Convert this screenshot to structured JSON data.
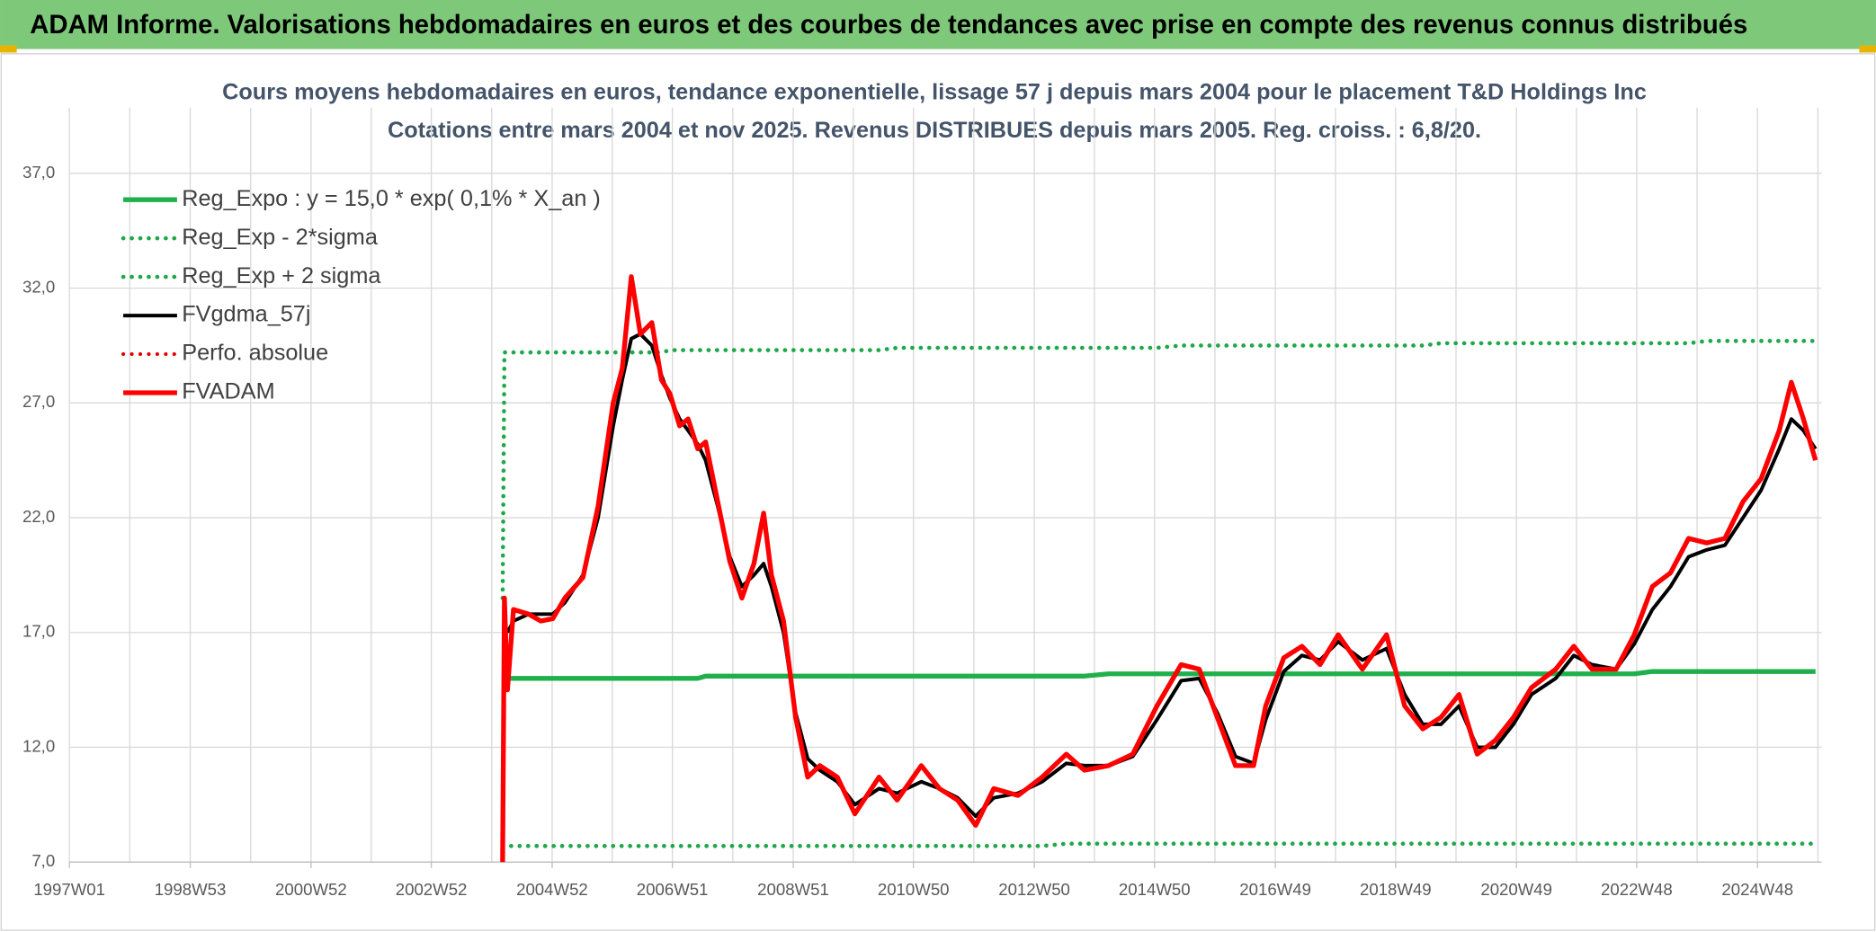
{
  "chart_data": {
    "type": "line",
    "header": "ADAM Informe. Valorisations hebdomadaires en euros et des courbes de tendances avec prise en compte des revenus connus distribués",
    "title": "Cours moyens hebdomadaires en euros, tendance exponentielle, lissage 57 j depuis mars 2004 pour le placement T&D Holdings Inc",
    "subtitle": "Cotations entre mars 2004 et nov 2025. Revenus DISTRIBUES depuis mars 2005. Reg. croiss. : 6,8/20.",
    "xlim": [
      1997.0,
      2026.0
    ],
    "xticks": [
      {
        "value": 1997.0,
        "label": "1997W01"
      },
      {
        "value": 1999.0,
        "label": "1998W53"
      },
      {
        "value": 2001.0,
        "label": "2000W52"
      },
      {
        "value": 2002.99,
        "label": "2002W52"
      },
      {
        "value": 2004.99,
        "label": "2004W52"
      },
      {
        "value": 2006.98,
        "label": "2006W51"
      },
      {
        "value": 2008.98,
        "label": "2008W51"
      },
      {
        "value": 2010.97,
        "label": "2010W50"
      },
      {
        "value": 2012.97,
        "label": "2012W50"
      },
      {
        "value": 2014.96,
        "label": "2014W50"
      },
      {
        "value": 2016.96,
        "label": "2016W49"
      },
      {
        "value": 2018.95,
        "label": "2018W49"
      },
      {
        "value": 2020.95,
        "label": "2020W49"
      },
      {
        "value": 2022.94,
        "label": "2022W48"
      },
      {
        "value": 2024.94,
        "label": "2024W48"
      }
    ],
    "ylim": [
      7.0,
      37.0
    ],
    "yticks": [
      {
        "value": 7,
        "label": "7,0"
      },
      {
        "value": 12,
        "label": "12,0"
      },
      {
        "value": 17,
        "label": "17,0"
      },
      {
        "value": 22,
        "label": "22,0"
      },
      {
        "value": 27,
        "label": "27,0"
      },
      {
        "value": 32,
        "label": "32,0"
      },
      {
        "value": 37,
        "label": "37,0"
      }
    ],
    "grid": true,
    "legend": "upper left",
    "x": [
      2004.17,
      2004.2,
      2004.25,
      2004.35,
      2004.6,
      2004.8,
      2005.0,
      2005.2,
      2005.5,
      2005.75,
      2006.0,
      2006.15,
      2006.3,
      2006.45,
      2006.64,
      2006.8,
      2006.94,
      2007.1,
      2007.24,
      2007.4,
      2007.53,
      2007.73,
      2007.93,
      2008.13,
      2008.33,
      2008.49,
      2008.62,
      2008.82,
      2009.02,
      2009.22,
      2009.42,
      2009.71,
      2010.0,
      2010.4,
      2010.7,
      2011.1,
      2011.4,
      2011.7,
      2012.0,
      2012.3,
      2012.7,
      2013.1,
      2013.5,
      2013.8,
      2014.2,
      2014.6,
      2015.0,
      2015.4,
      2015.7,
      2016.0,
      2016.3,
      2016.6,
      2016.8,
      2017.1,
      2017.4,
      2017.7,
      2018.0,
      2018.4,
      2018.8,
      2019.1,
      2019.4,
      2019.7,
      2020.0,
      2020.3,
      2020.6,
      2020.9,
      2021.2,
      2021.6,
      2021.9,
      2022.2,
      2022.6,
      2022.9,
      2023.2,
      2023.5,
      2023.8,
      2024.1,
      2024.4,
      2024.7,
      2025.0,
      2025.3,
      2025.5,
      2025.7,
      2025.9
    ],
    "series": [
      {
        "name": "Reg_Expo : y = 15,0 * exp( 0,1% *  X_an )",
        "color": "#1fb04b",
        "style": "solid",
        "width": 4,
        "values": [
          15.0,
          15.0,
          15.0,
          15.0,
          15.0,
          15.0,
          15.0,
          15.0,
          15.0,
          15.0,
          15.0,
          15.0,
          15.0,
          15.0,
          15.0,
          15.0,
          15.0,
          15.0,
          15.0,
          15.0,
          15.1,
          15.1,
          15.1,
          15.1,
          15.1,
          15.1,
          15.1,
          15.1,
          15.1,
          15.1,
          15.1,
          15.1,
          15.1,
          15.1,
          15.1,
          15.1,
          15.1,
          15.1,
          15.1,
          15.1,
          15.1,
          15.1,
          15.1,
          15.1,
          15.2,
          15.2,
          15.2,
          15.2,
          15.2,
          15.2,
          15.2,
          15.2,
          15.2,
          15.2,
          15.2,
          15.2,
          15.2,
          15.2,
          15.2,
          15.2,
          15.2,
          15.2,
          15.2,
          15.2,
          15.2,
          15.2,
          15.2,
          15.2,
          15.2,
          15.2,
          15.2,
          15.2,
          15.3,
          15.3,
          15.3,
          15.3,
          15.3,
          15.3,
          15.3,
          15.3,
          15.3,
          15.3,
          15.3
        ]
      },
      {
        "name": "Reg_Exp - 2*sigma",
        "color": "#1fa84a",
        "style": "dotted",
        "width": 3.5,
        "values": [
          7.7,
          7.7,
          7.7,
          7.7,
          7.7,
          7.7,
          7.7,
          7.7,
          7.7,
          7.7,
          7.7,
          7.7,
          7.7,
          7.7,
          7.7,
          7.7,
          7.7,
          7.7,
          7.7,
          7.7,
          7.7,
          7.7,
          7.7,
          7.7,
          7.7,
          7.7,
          7.7,
          7.7,
          7.7,
          7.7,
          7.7,
          7.7,
          7.7,
          7.7,
          7.7,
          7.7,
          7.7,
          7.7,
          7.7,
          7.7,
          7.7,
          7.7,
          7.8,
          7.8,
          7.8,
          7.8,
          7.8,
          7.8,
          7.8,
          7.8,
          7.8,
          7.8,
          7.8,
          7.8,
          7.8,
          7.8,
          7.8,
          7.8,
          7.8,
          7.8,
          7.8,
          7.8,
          7.8,
          7.8,
          7.8,
          7.8,
          7.8,
          7.8,
          7.8,
          7.8,
          7.8,
          7.8,
          7.8,
          7.8,
          7.8,
          7.8,
          7.8,
          7.8,
          7.8,
          7.8,
          7.8,
          7.8,
          7.8
        ]
      },
      {
        "name": "Reg_Exp + 2 sigma",
        "color": "#1fa84a",
        "style": "dotted",
        "width": 3.5,
        "values": [
          18.5,
          29.2,
          29.2,
          29.2,
          29.2,
          29.2,
          29.2,
          29.2,
          29.2,
          29.2,
          29.2,
          29.2,
          29.2,
          29.2,
          29.2,
          29.2,
          29.3,
          29.3,
          29.3,
          29.3,
          29.3,
          29.3,
          29.3,
          29.3,
          29.3,
          29.3,
          29.3,
          29.3,
          29.3,
          29.3,
          29.3,
          29.3,
          29.3,
          29.3,
          29.4,
          29.4,
          29.4,
          29.4,
          29.4,
          29.4,
          29.4,
          29.4,
          29.4,
          29.4,
          29.4,
          29.4,
          29.4,
          29.5,
          29.5,
          29.5,
          29.5,
          29.5,
          29.5,
          29.5,
          29.5,
          29.5,
          29.5,
          29.5,
          29.5,
          29.5,
          29.5,
          29.6,
          29.6,
          29.6,
          29.6,
          29.6,
          29.6,
          29.6,
          29.6,
          29.6,
          29.6,
          29.6,
          29.6,
          29.6,
          29.6,
          29.7,
          29.7,
          29.7,
          29.7,
          29.7,
          29.7,
          29.7,
          29.7
        ]
      },
      {
        "name": "FVgdma_57j",
        "color": "#000000",
        "style": "solid",
        "width": 3,
        "values": [
          null,
          null,
          17.0,
          17.5,
          17.8,
          17.8,
          17.8,
          18.3,
          19.5,
          22.0,
          26.0,
          28.0,
          29.8,
          30.0,
          29.5,
          28.2,
          27.2,
          26.3,
          25.8,
          25.2,
          24.5,
          22.5,
          20.3,
          19.0,
          19.5,
          20.0,
          19.0,
          17.0,
          13.5,
          11.5,
          11.0,
          10.5,
          9.5,
          10.2,
          10.0,
          10.5,
          10.2,
          9.8,
          9.0,
          9.8,
          10.0,
          10.5,
          11.3,
          11.2,
          11.2,
          11.6,
          13.2,
          14.9,
          15.0,
          13.5,
          11.6,
          11.3,
          13.2,
          15.3,
          16.0,
          15.8,
          16.6,
          15.8,
          16.3,
          14.3,
          13.0,
          13.0,
          13.8,
          12.0,
          12.0,
          13.0,
          14.3,
          15.0,
          16.0,
          15.6,
          15.4,
          16.5,
          18.0,
          19.0,
          20.3,
          20.6,
          20.8,
          22.0,
          23.2,
          25.0,
          26.3,
          25.8,
          25.0
        ]
      },
      {
        "name": "Perfo. absolue",
        "color": "#e00000",
        "style": "dotted",
        "width": 3,
        "values": [
          null,
          null,
          null,
          null,
          null,
          null,
          null,
          null,
          null,
          null,
          null,
          null,
          null,
          null,
          null,
          null,
          null,
          null,
          null,
          null,
          null,
          null,
          null,
          null,
          null,
          null,
          null,
          null,
          null,
          null,
          null,
          null,
          null,
          null,
          null,
          null,
          null,
          null,
          null,
          null,
          null,
          null,
          null,
          null,
          null,
          null,
          null,
          null,
          null,
          null,
          null,
          null,
          null,
          null,
          null,
          null,
          null,
          null,
          null,
          null,
          null,
          null,
          null,
          null,
          null,
          null,
          null,
          null,
          null,
          null,
          null,
          null,
          null,
          null,
          null,
          null,
          null,
          null,
          null,
          null,
          null,
          null,
          null
        ]
      },
      {
        "name": "FVADAM",
        "color": "#ff0000",
        "style": "solid",
        "width": 4,
        "values": [
          7.0,
          18.5,
          14.5,
          18.0,
          17.8,
          17.5,
          17.6,
          18.5,
          19.4,
          22.5,
          27.0,
          28.5,
          32.5,
          30.0,
          30.5,
          28.0,
          27.4,
          26.0,
          26.3,
          25.0,
          25.3,
          22.7,
          20.1,
          18.5,
          20.0,
          22.2,
          19.5,
          17.5,
          13.3,
          10.7,
          11.2,
          10.7,
          9.1,
          10.7,
          9.7,
          11.2,
          10.2,
          9.7,
          8.6,
          10.2,
          9.9,
          10.7,
          11.7,
          11.0,
          11.2,
          11.7,
          13.8,
          15.6,
          15.4,
          13.3,
          11.2,
          11.2,
          13.8,
          15.9,
          16.4,
          15.6,
          16.9,
          15.4,
          16.9,
          13.8,
          12.8,
          13.3,
          14.3,
          11.7,
          12.3,
          13.3,
          14.6,
          15.4,
          16.4,
          15.4,
          15.4,
          16.9,
          19.0,
          19.6,
          21.1,
          20.9,
          21.1,
          22.7,
          23.7,
          25.8,
          27.9,
          26.3,
          24.5
        ]
      }
    ]
  }
}
